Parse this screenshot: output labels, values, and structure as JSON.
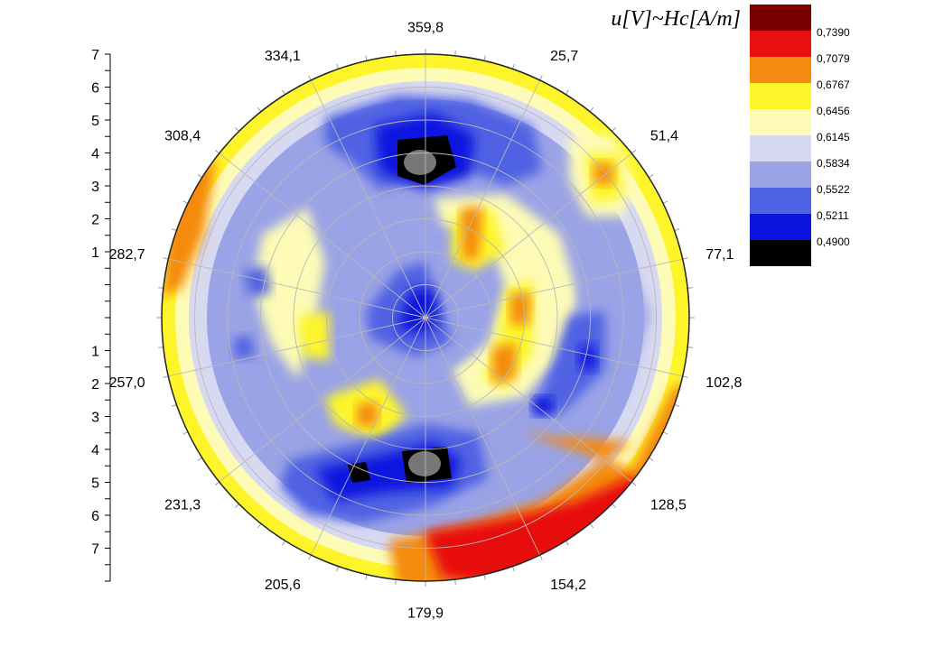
{
  "chart_data": {
    "type": "heatmap",
    "subtype": "polar-contour",
    "legend_title": "u[V]~Hc[A/m]",
    "angle_labels": [
      "359,8",
      "25,7",
      "51,4",
      "77,1",
      "102,8",
      "128,5",
      "154,2",
      "179,9",
      "205,6",
      "231,3",
      "257,0",
      "282,7",
      "308,4",
      "334,1"
    ],
    "radial_axis": {
      "ticks_upper": [
        "7",
        "6",
        "5",
        "4",
        "3",
        "2",
        "1"
      ],
      "ticks_lower": [
        "1",
        "2",
        "3",
        "4",
        "5",
        "6",
        "7"
      ],
      "range": [
        0,
        8
      ]
    },
    "legend": {
      "levels": [
        {
          "label": "",
          "color": "#7a0000"
        },
        {
          "label": "0,7390",
          "color": "#e81010"
        },
        {
          "label": "0,7079",
          "color": "#f58a10"
        },
        {
          "label": "0,6767",
          "color": "#fdf52a"
        },
        {
          "label": "0,6456",
          "color": "#fdfbb6"
        },
        {
          "label": "0,6145",
          "color": "#d7d9f1"
        },
        {
          "label": "0,5834",
          "color": "#9aa3e6"
        },
        {
          "label": "0,5522",
          "color": "#4f62e3"
        },
        {
          "label": "0,5211",
          "color": "#0d14e0"
        },
        {
          "label": "0,4900",
          "color": "#000000"
        }
      ]
    },
    "features": [
      {
        "kind": "min",
        "angle": 0,
        "r": 4.6,
        "level": 9
      },
      {
        "kind": "min",
        "angle": 180,
        "r": 4.6,
        "level": 9
      },
      {
        "kind": "min",
        "angle": 200,
        "r": 5.2,
        "level": 9
      },
      {
        "kind": "low",
        "angle": 0,
        "r": 0.3,
        "level": 8
      },
      {
        "kind": "low",
        "angle": 0,
        "r": 4.4,
        "level": 8
      },
      {
        "kind": "low",
        "angle": 190,
        "r": 4.8,
        "level": 8
      },
      {
        "kind": "max",
        "angle": 160,
        "r": 7.6,
        "level": 1
      },
      {
        "kind": "max",
        "angle": 145,
        "r": 7.3,
        "level": 2
      },
      {
        "kind": "high",
        "angle": 48,
        "r": 5.3,
        "level": 2
      },
      {
        "kind": "high",
        "angle": 30,
        "r": 2.6,
        "level": 3
      }
    ]
  }
}
